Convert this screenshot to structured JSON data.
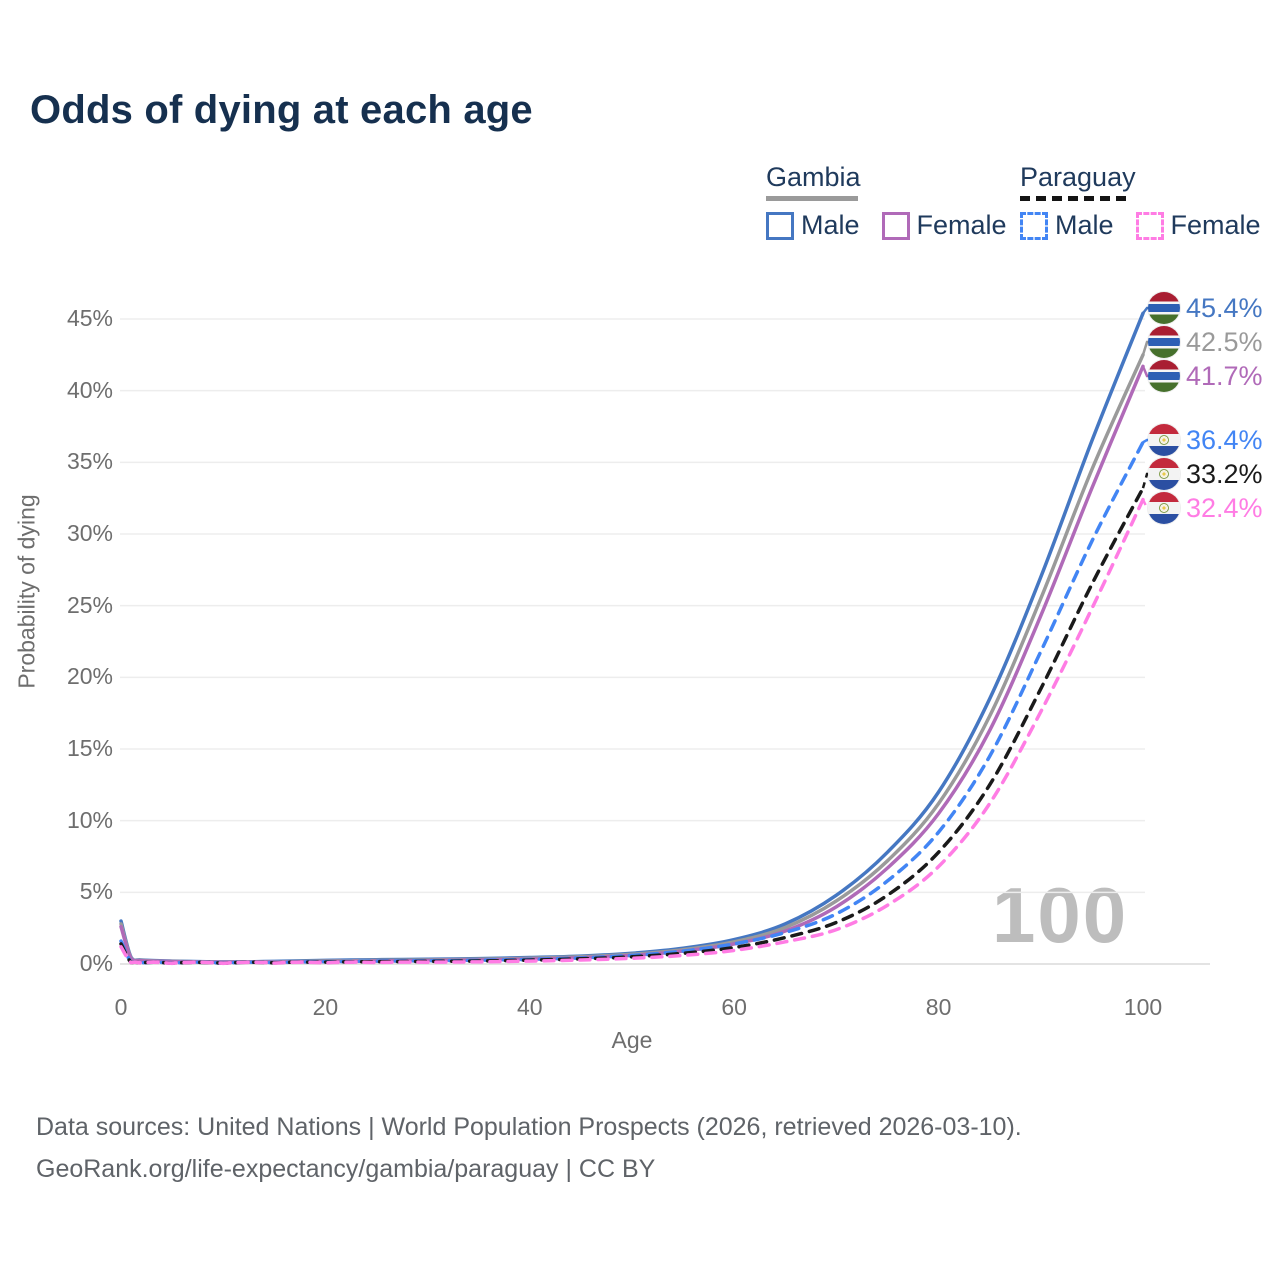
{
  "title": "Odds of dying at each age",
  "watermark": "100",
  "legend": {
    "groups": [
      {
        "label": "Gambia",
        "line_style": "solid",
        "line_color": "#9a9a9a",
        "items": [
          {
            "label": "Male",
            "color": "#4577c2",
            "dash": "solid"
          },
          {
            "label": "Female",
            "color": "#b06ab8",
            "dash": "solid"
          }
        ]
      },
      {
        "label": "Paraguay",
        "line_style": "dashed",
        "line_color": "#141414",
        "items": [
          {
            "label": "Male",
            "color": "#4285f4",
            "dash": "dashed"
          },
          {
            "label": "Female",
            "color": "#ff7ce4",
            "dash": "dashed"
          }
        ]
      }
    ]
  },
  "axes": {
    "y_label": "Probability of dying",
    "x_label": "Age"
  },
  "chart_data": {
    "type": "line",
    "title": "Odds of dying at each age",
    "xlabel": "Age",
    "ylabel": "Probability of dying",
    "xlim": [
      0,
      100
    ],
    "ylim": [
      0,
      46
    ],
    "grid": "horizontal",
    "legend_position": "top-right",
    "x": [
      0,
      1,
      2,
      5,
      10,
      15,
      20,
      25,
      30,
      35,
      40,
      45,
      50,
      55,
      60,
      65,
      70,
      75,
      80,
      85,
      90,
      95,
      100
    ],
    "x_ticks": [
      0,
      20,
      40,
      60,
      80,
      100
    ],
    "x_tick_labels": [
      "0",
      "20",
      "40",
      "60",
      "80",
      "100"
    ],
    "y_ticks": [
      0,
      5,
      10,
      15,
      20,
      25,
      30,
      35,
      40,
      45
    ],
    "y_tick_labels": [
      "0%",
      "5%",
      "10%",
      "15%",
      "20%",
      "25%",
      "30%",
      "35%",
      "40%",
      "45%"
    ],
    "series": [
      {
        "name": "Gambia Male",
        "color": "#4577c2",
        "dash": "solid",
        "end_value": 45.4,
        "values": [
          3.0,
          0.45,
          0.28,
          0.2,
          0.15,
          0.18,
          0.25,
          0.3,
          0.33,
          0.38,
          0.45,
          0.55,
          0.75,
          1.1,
          1.7,
          2.8,
          4.8,
          7.8,
          12.0,
          18.5,
          27.0,
          36.5,
          45.4
        ]
      },
      {
        "name": "Gambia Both sexes",
        "color": "#9a9a9a",
        "dash": "solid",
        "end_value": 42.5,
        "values": [
          2.8,
          0.4,
          0.25,
          0.18,
          0.13,
          0.15,
          0.21,
          0.25,
          0.28,
          0.33,
          0.4,
          0.5,
          0.68,
          1.0,
          1.55,
          2.55,
          4.4,
          7.2,
          11.2,
          17.3,
          25.5,
          34.5,
          42.5
        ]
      },
      {
        "name": "Gambia Female",
        "color": "#b06ab8",
        "dash": "solid",
        "end_value": 41.7,
        "values": [
          2.6,
          0.37,
          0.23,
          0.17,
          0.12,
          0.13,
          0.17,
          0.2,
          0.24,
          0.28,
          0.34,
          0.44,
          0.6,
          0.9,
          1.4,
          2.3,
          4.0,
          6.7,
          10.5,
          16.3,
          24.3,
          33.2,
          41.7
        ]
      },
      {
        "name": "Paraguay Male",
        "color": "#4285f4",
        "dash": "dashed",
        "end_value": 36.4,
        "values": [
          1.6,
          0.12,
          0.08,
          0.06,
          0.06,
          0.1,
          0.16,
          0.2,
          0.22,
          0.26,
          0.32,
          0.42,
          0.6,
          0.9,
          1.4,
          2.2,
          3.5,
          5.8,
          9.2,
          14.5,
          21.8,
          29.5,
          36.4
        ]
      },
      {
        "name": "Paraguay Both sexes",
        "color": "#1a1a1a",
        "dash": "dashed",
        "end_value": 33.2,
        "values": [
          1.4,
          0.1,
          0.07,
          0.05,
          0.05,
          0.08,
          0.13,
          0.16,
          0.18,
          0.21,
          0.27,
          0.36,
          0.5,
          0.75,
          1.15,
          1.85,
          2.9,
          4.8,
          7.8,
          12.5,
          19.2,
          26.5,
          33.2
        ]
      },
      {
        "name": "Paraguay Female",
        "color": "#ff7ce4",
        "dash": "dashed",
        "end_value": 32.4,
        "values": [
          1.2,
          0.09,
          0.06,
          0.04,
          0.04,
          0.06,
          0.08,
          0.1,
          0.12,
          0.15,
          0.2,
          0.28,
          0.4,
          0.6,
          0.95,
          1.55,
          2.4,
          4.1,
          6.8,
          11.2,
          17.6,
          24.8,
          32.4
        ]
      }
    ]
  },
  "end_labels": [
    {
      "value": "45.4%",
      "flag": "gambia",
      "color": "#4577c2",
      "series": "Gambia Male"
    },
    {
      "value": "42.5%",
      "flag": "gambia",
      "color": "#9a9a9a",
      "series": "Gambia Both sexes"
    },
    {
      "value": "41.7%",
      "flag": "gambia",
      "color": "#b06ab8",
      "series": "Gambia Female"
    },
    {
      "value": "36.4%",
      "flag": "paraguay",
      "color": "#4285f4",
      "series": "Paraguay Male"
    },
    {
      "value": "33.2%",
      "flag": "paraguay",
      "color": "#1a1a1a",
      "series": "Paraguay Both sexes"
    },
    {
      "value": "32.4%",
      "flag": "paraguay",
      "color": "#ff7ce4",
      "series": "Paraguay Female"
    }
  ],
  "footer": {
    "line1": "Data sources: United Nations | World Population Prospects (2026, retrieved 2026-03-10).",
    "line2": "GeoRank.org/life-expectancy/gambia/paraguay | CC BY"
  }
}
